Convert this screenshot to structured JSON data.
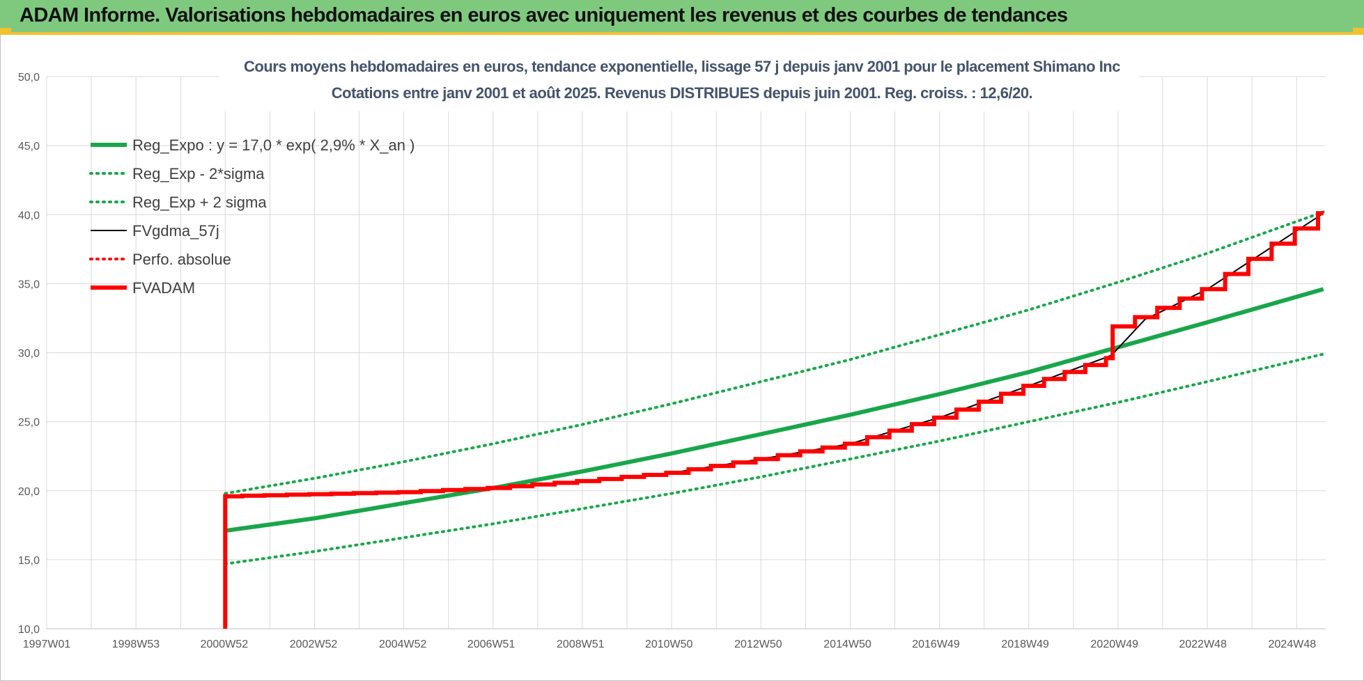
{
  "page": {
    "header_title": "ADAM Informe. Valorisations hebdomadaires en euros avec uniquement les revenus et des courbes de tendances"
  },
  "colors": {
    "header_bg": "#7fc97f",
    "header_accent": "#f2c12e",
    "green": "#19a64a",
    "red": "#ff0000",
    "black": "#000000",
    "grid": "#d9d9d9"
  },
  "chart_data": {
    "type": "line",
    "title": "Cours moyens hebdomadaires en euros, tendance exponentielle, lissage 57 j depuis janv 2001 pour le placement Shimano Inc",
    "subtitle": "Cotations entre janv 2001 et août 2025.  Revenus DISTRIBUES depuis juin 2001.  Reg. croiss. : 12,6/20.",
    "xlabel": "",
    "ylabel": "",
    "x_tick_labels": [
      "1997W01",
      "1998W53",
      "2000W52",
      "2002W52",
      "2004W52",
      "2006W51",
      "2008W51",
      "2010W50",
      "2012W50",
      "2014W50",
      "2016W49",
      "2018W49",
      "2020W49",
      "2022W48",
      "2024W48"
    ],
    "x_range": [
      "1997W01",
      "2025W35"
    ],
    "y_tick_labels": [
      "10,0",
      "15,0",
      "20,0",
      "25,0",
      "30,0",
      "35,0",
      "40,0",
      "45,0",
      "50,0"
    ],
    "ylim": [
      10,
      50
    ],
    "grid": true,
    "legend_position": "top-left",
    "series": [
      {
        "name": "Reg_Expo : y = 17,0 * exp( 2,9% *  X_an )",
        "style": "solid-thick",
        "color": "#19a64a",
        "x_year": [
          2001.0,
          2003,
          2005,
          2007,
          2009,
          2011,
          2013,
          2015,
          2017,
          2019,
          2021,
          2023,
          2025.6
        ],
        "y": [
          17.1,
          18.0,
          19.1,
          20.2,
          21.4,
          22.7,
          24.1,
          25.5,
          27.0,
          28.6,
          30.4,
          32.2,
          34.6
        ]
      },
      {
        "name": "Reg_Exp - 2*sigma",
        "style": "dotted",
        "color": "#19a64a",
        "x_year": [
          2001.0,
          2003,
          2005,
          2007,
          2009,
          2011,
          2013,
          2015,
          2017,
          2019,
          2021,
          2023,
          2025.6
        ],
        "y": [
          14.7,
          15.6,
          16.6,
          17.6,
          18.7,
          19.8,
          21.0,
          22.3,
          23.6,
          25.0,
          26.4,
          27.9,
          29.9
        ]
      },
      {
        "name": "Reg_Exp + 2 sigma",
        "style": "dotted",
        "color": "#19a64a",
        "x_year": [
          2001.0,
          2003,
          2005,
          2007,
          2009,
          2011,
          2013,
          2015,
          2017,
          2019,
          2021,
          2023,
          2025.6
        ],
        "y": [
          19.8,
          20.9,
          22.1,
          23.4,
          24.8,
          26.3,
          27.9,
          29.5,
          31.3,
          33.1,
          35.1,
          37.2,
          40.2
        ]
      },
      {
        "name": "FVgdma_57j",
        "style": "solid",
        "color": "#000000",
        "x_year": [
          2001.0,
          2003,
          2005,
          2007,
          2009,
          2011,
          2013,
          2015,
          2017,
          2019,
          2020.85,
          2021.6,
          2023,
          2025.6
        ],
        "y": [
          19.6,
          19.75,
          19.9,
          20.2,
          20.7,
          21.3,
          22.3,
          23.4,
          25.3,
          27.6,
          29.8,
          32.4,
          34.6,
          40.1
        ]
      },
      {
        "name": "Perfo. absolue",
        "style": "dotted",
        "color": "#ff0000",
        "x_year": [],
        "y": []
      },
      {
        "name": "FVADAM",
        "style": "solid-thick-stepped",
        "color": "#ff0000",
        "x_year": [
          2001.0,
          2001.0,
          2003,
          2005,
          2007,
          2009,
          2011,
          2013,
          2015,
          2017,
          2019,
          2020.85,
          2021.0,
          2023,
          2025.6
        ],
        "y": [
          10.0,
          19.6,
          19.75,
          19.9,
          20.2,
          20.7,
          21.3,
          22.3,
          23.4,
          25.3,
          27.6,
          29.6,
          31.9,
          34.6,
          40.1
        ]
      }
    ]
  }
}
